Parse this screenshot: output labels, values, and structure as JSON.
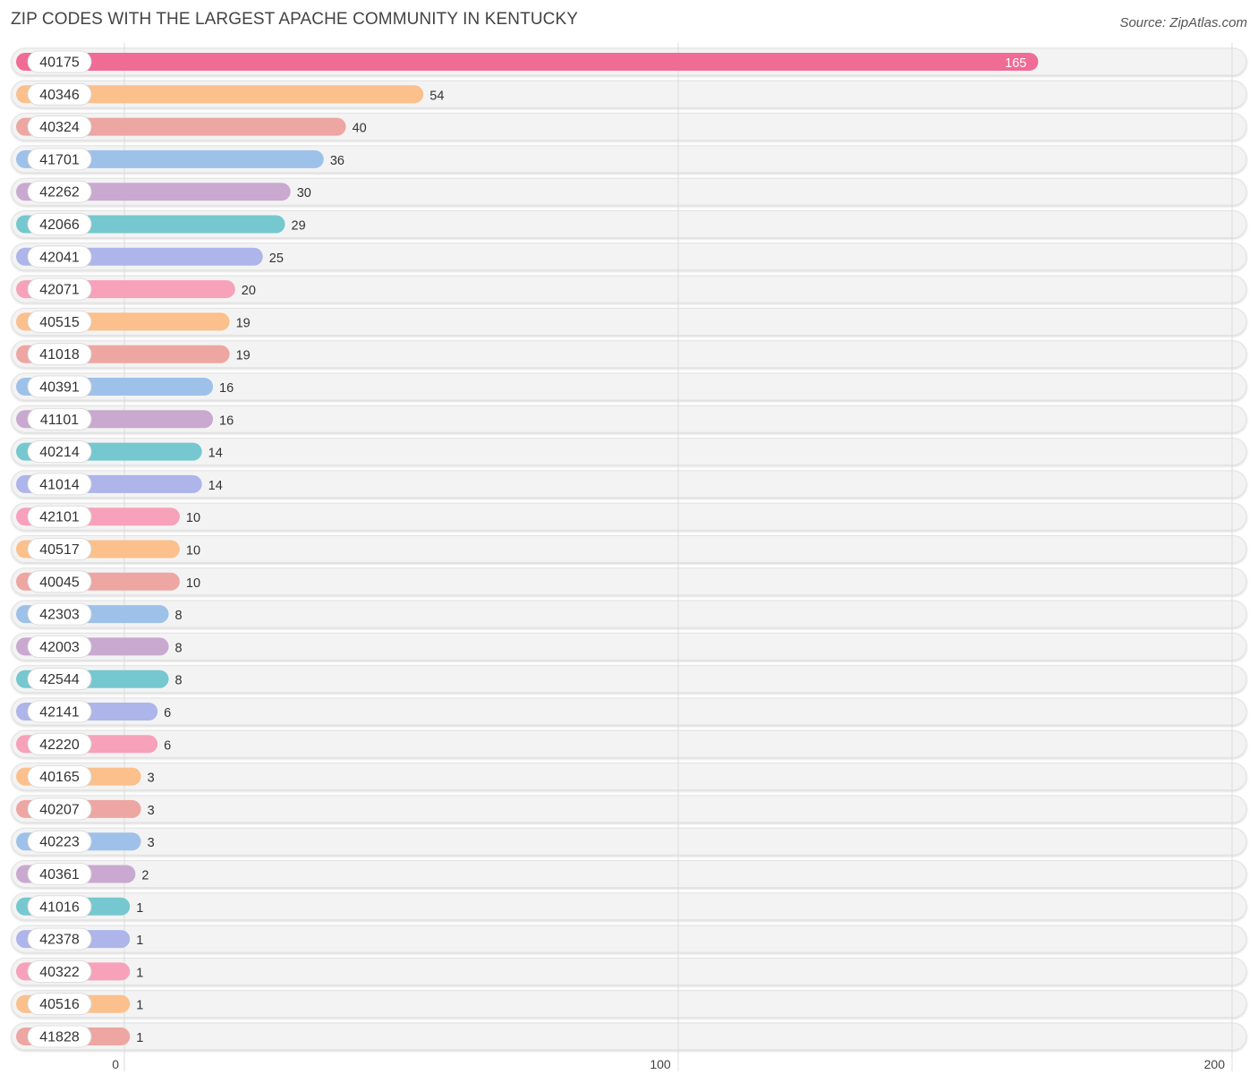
{
  "title": "ZIP CODES WITH THE LARGEST APACHE COMMUNITY IN KENTUCKY",
  "source": "Source: ZipAtlas.com",
  "chart_data": {
    "type": "bar",
    "orientation": "horizontal",
    "title": "ZIP CODES WITH THE LARGEST APACHE COMMUNITY IN KENTUCKY",
    "xlabel": "",
    "ylabel": "",
    "xlim": [
      0,
      200
    ],
    "xticks": [
      0,
      100,
      200
    ],
    "grid": true,
    "categories": [
      "40175",
      "40346",
      "40324",
      "41701",
      "42262",
      "42066",
      "42041",
      "42071",
      "40515",
      "41018",
      "40391",
      "41101",
      "40214",
      "41014",
      "42101",
      "40517",
      "40045",
      "42303",
      "42003",
      "42544",
      "42141",
      "42220",
      "40165",
      "40207",
      "40223",
      "40361",
      "41016",
      "42378",
      "40322",
      "40516",
      "41828"
    ],
    "values": [
      165,
      54,
      40,
      36,
      30,
      29,
      25,
      20,
      19,
      19,
      16,
      16,
      14,
      14,
      10,
      10,
      10,
      8,
      8,
      8,
      6,
      6,
      3,
      3,
      3,
      2,
      1,
      1,
      1,
      1,
      1
    ],
    "colors": [
      "#f06b95",
      "#fbc08c",
      "#eda6a2",
      "#9ec1e9",
      "#c9a9cf",
      "#75c8cf",
      "#adb5ea",
      "#f7a1bb",
      "#fbc08c",
      "#eda6a2",
      "#9ec1e9",
      "#c9a9cf",
      "#75c8cf",
      "#adb5ea",
      "#f7a1bb",
      "#fbc08c",
      "#eda6a2",
      "#9ec1e9",
      "#c9a9cf",
      "#75c8cf",
      "#adb5ea",
      "#f7a1bb",
      "#fbc08c",
      "#eda6a2",
      "#9ec1e9",
      "#c9a9cf",
      "#75c8cf",
      "#adb5ea",
      "#f7a1bb",
      "#fbc08c",
      "#eda6a2"
    ]
  }
}
